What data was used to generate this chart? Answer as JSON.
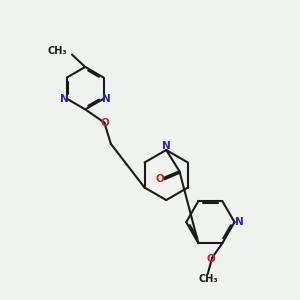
{
  "bg_color": "#f0f2f0",
  "bond_color": "#1a1a1a",
  "N_color": "#2222cc",
  "O_color": "#cc2222",
  "lw": 1.5,
  "fs": 7.5,
  "doff": 0.055,
  "xlim": [
    0.0,
    10.0
  ],
  "ylim": [
    1.5,
    10.5
  ]
}
